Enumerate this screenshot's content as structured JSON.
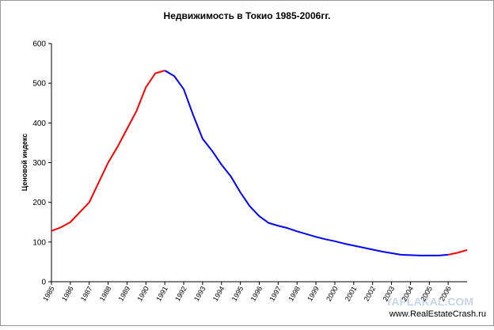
{
  "chart_data": {
    "type": "line",
    "title": "Недвижимость в Токио 1985-2006гг.",
    "y_label": "Ценовой индекс",
    "watermarks": [
      "YAPLAKAL.COM",
      "www.RealEstateCrash.ru"
    ],
    "x": [
      1985,
      1985.5,
      1986,
      1986.5,
      1987,
      1987.5,
      1988,
      1988.5,
      1989,
      1989.5,
      1990,
      1990.5,
      1991,
      1991.5,
      1992,
      1992.5,
      1993,
      1993.5,
      1994,
      1994.5,
      1995,
      1995.5,
      1996,
      1996.5,
      1997,
      1997.5,
      1998,
      1998.5,
      1999,
      1999.5,
      2000,
      2000.5,
      2001,
      2001.5,
      2002,
      2002.5,
      2003,
      2003.5,
      2004,
      2004.5,
      2005,
      2005.5,
      2006,
      2006.5,
      2007
    ],
    "series": [
      {
        "color": "#ff0000",
        "values": [
          128,
          137,
          150,
          175,
          200,
          250,
          300,
          340,
          385,
          430,
          490,
          525,
          532,
          null,
          null,
          null,
          null,
          null,
          null,
          null,
          null,
          null,
          null,
          null,
          null,
          null,
          null,
          null,
          null,
          null,
          null,
          null,
          null,
          null,
          null,
          null,
          null,
          null,
          null,
          null,
          null,
          null,
          68,
          73,
          80
        ]
      },
      {
        "color": "#0000ff",
        "values": [
          null,
          null,
          null,
          null,
          null,
          null,
          null,
          null,
          null,
          null,
          null,
          null,
          532,
          518,
          485,
          420,
          360,
          330,
          295,
          265,
          225,
          190,
          165,
          148,
          141,
          135,
          127,
          120,
          113,
          107,
          102,
          96,
          91,
          86,
          81,
          76,
          72,
          68,
          67,
          66,
          66,
          66,
          68,
          null,
          null
        ]
      }
    ],
    "xlim": [
      1985,
      2007
    ],
    "xticks": [
      1985,
      1986,
      1987,
      1988,
      1989,
      1990,
      1991,
      1992,
      1993,
      1994,
      1995,
      1996,
      1997,
      1998,
      1999,
      2000,
      2001,
      2002,
      2003,
      2004,
      2005,
      2006
    ],
    "ylim": [
      0,
      600
    ],
    "yticks": [
      0,
      100,
      200,
      300,
      400,
      500,
      600
    ],
    "grid": false
  }
}
